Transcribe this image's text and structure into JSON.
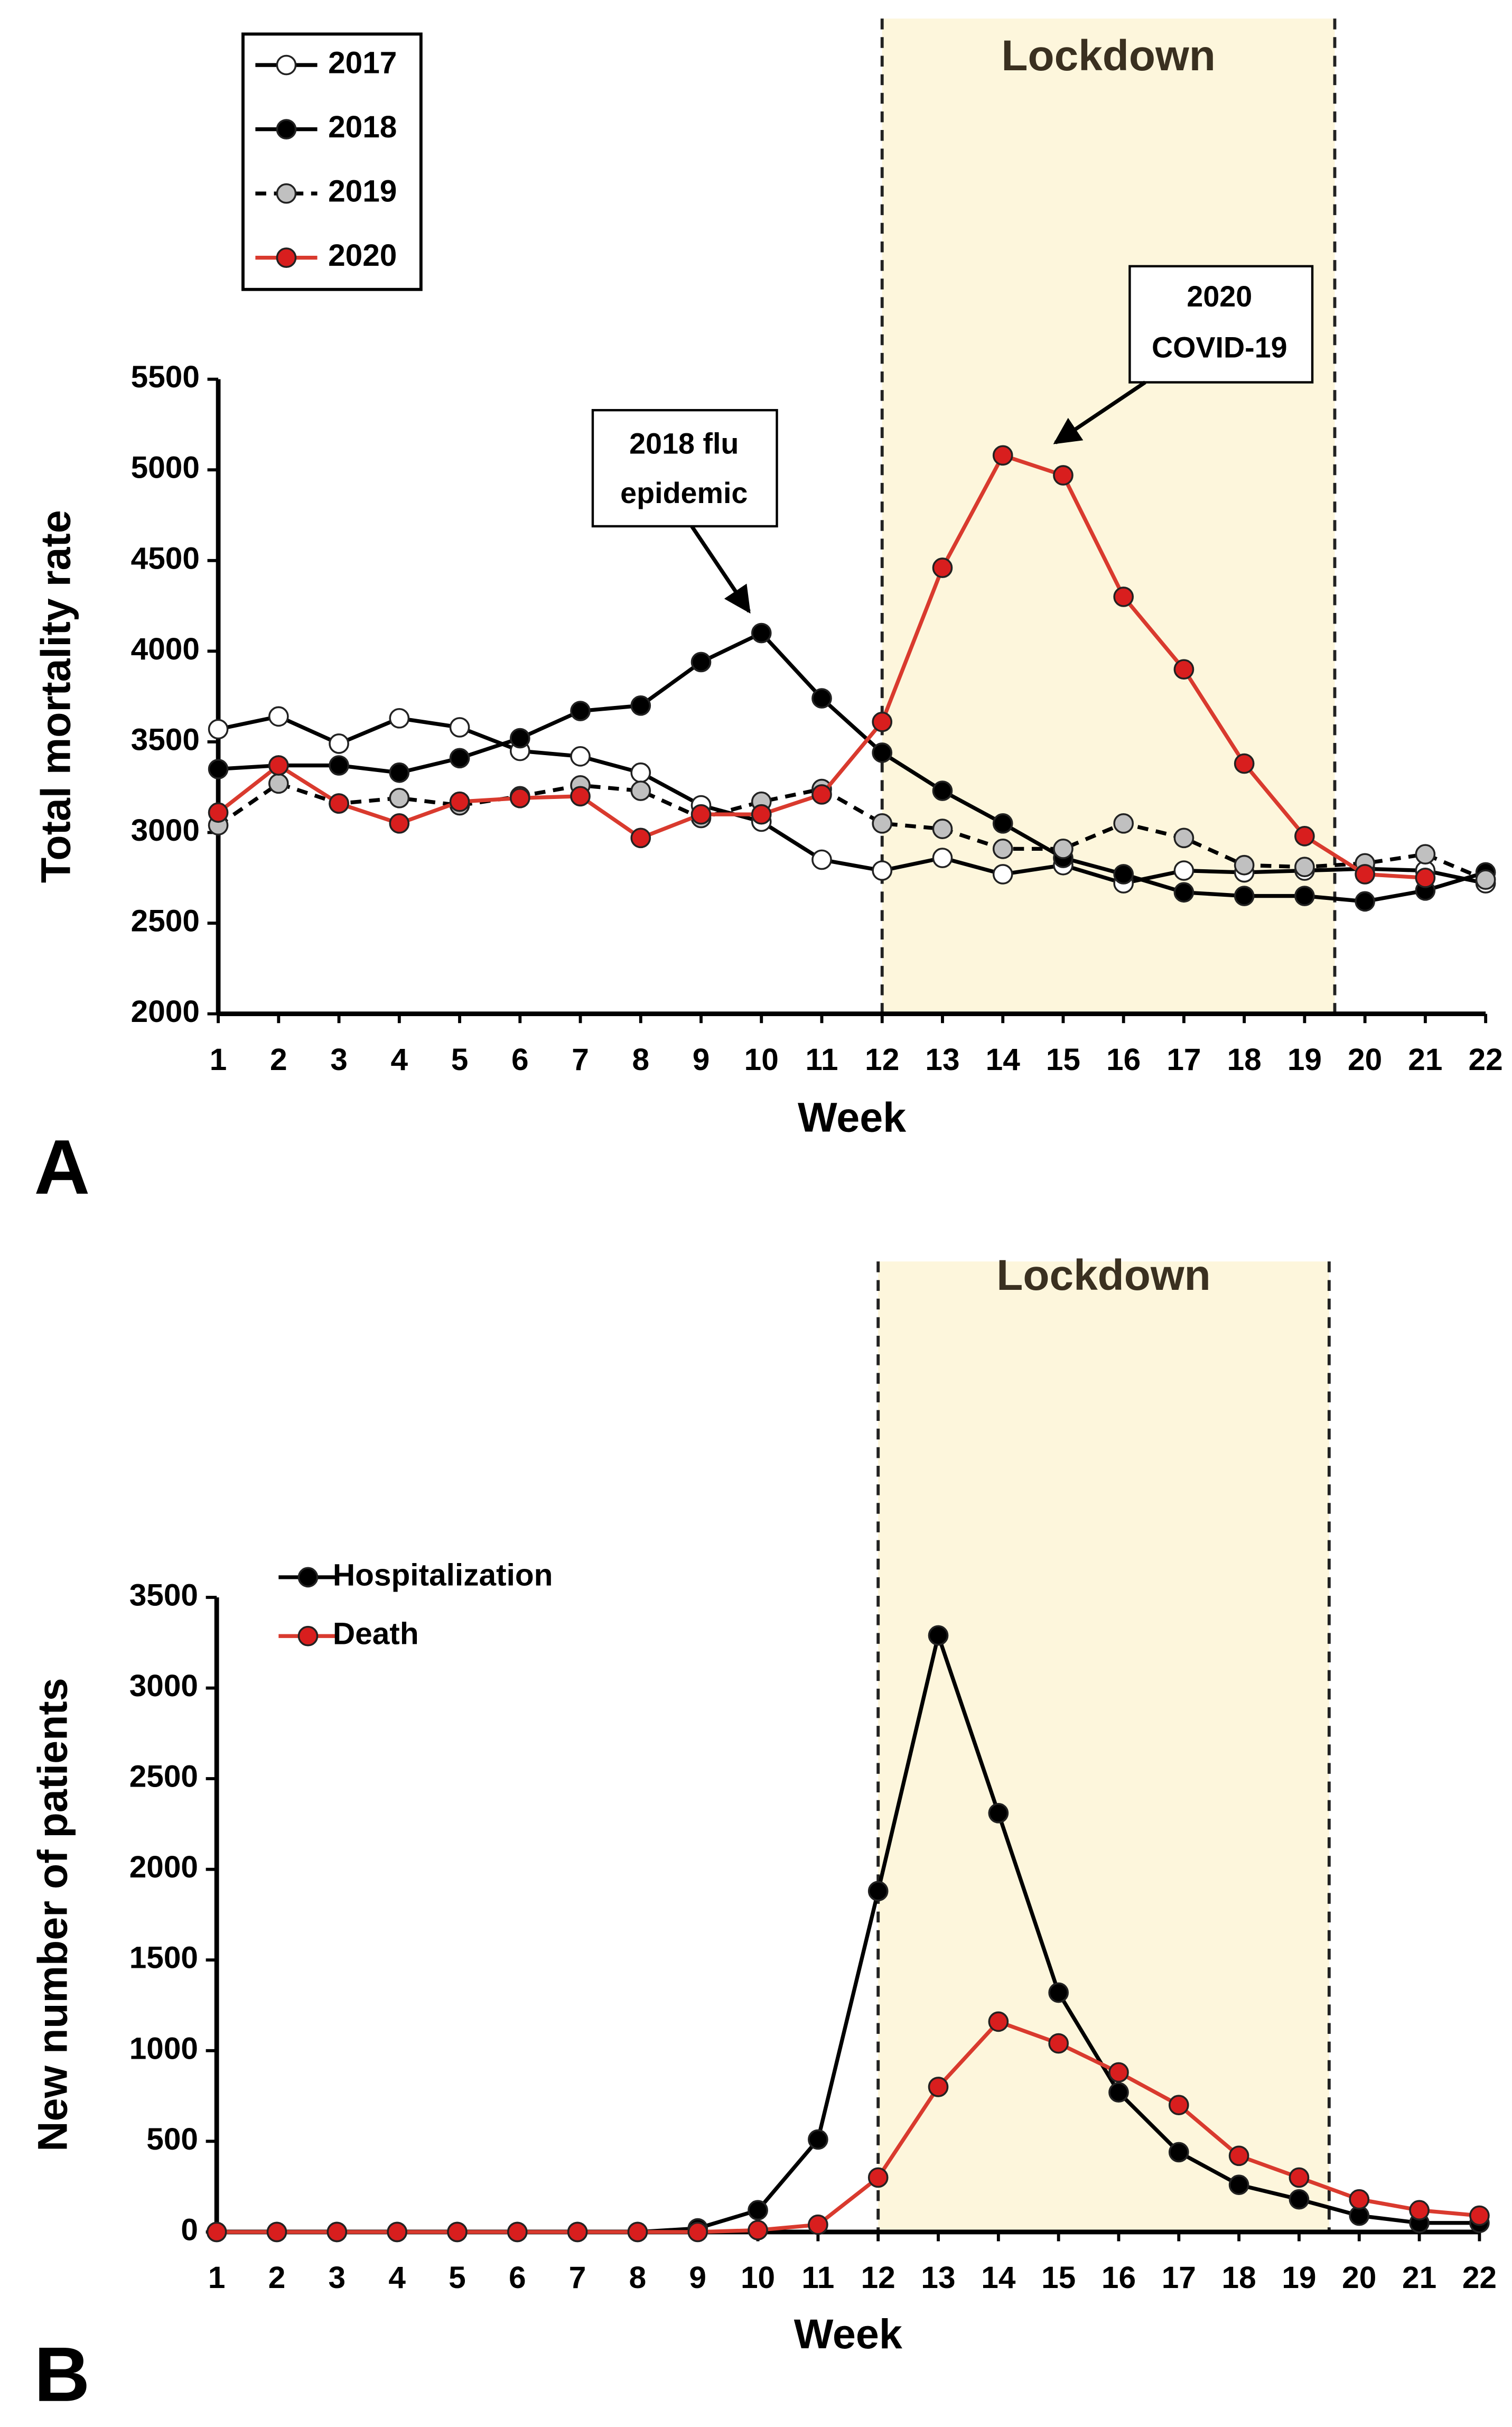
{
  "chart_data": [
    {
      "type": "line",
      "panel": "A",
      "xlabel": "Week",
      "ylabel": "Total mortality rate",
      "x": [
        1,
        2,
        3,
        4,
        5,
        6,
        7,
        8,
        9,
        10,
        11,
        12,
        13,
        14,
        15,
        16,
        17,
        18,
        19,
        20,
        21,
        22
      ],
      "xlim": [
        1,
        22
      ],
      "xticks": [
        1,
        2,
        3,
        4,
        5,
        6,
        7,
        8,
        9,
        10,
        11,
        12,
        13,
        14,
        15,
        16,
        17,
        18,
        19,
        20,
        21,
        22
      ],
      "ylim": [
        2000,
        5500
      ],
      "yticks": [
        2000,
        2500,
        3000,
        3500,
        4000,
        4500,
        5000,
        5500
      ],
      "grid": false,
      "legend": "upper left",
      "legend_box": true,
      "lockdown": {
        "label": "Lockdown",
        "start": 12,
        "end": 19.5,
        "color": "#fdf6dc"
      },
      "annotations": [
        {
          "text": [
            "2018 flu",
            "epidemic"
          ]
        },
        {
          "text": [
            "2020",
            "COVID-19"
          ]
        }
      ],
      "series": [
        {
          "name": "2017",
          "color": "#000000",
          "marker_color": "#ffffff",
          "line_style": "solid",
          "values": [
            3570,
            3640,
            3490,
            3630,
            3580,
            3450,
            3420,
            3330,
            3150,
            3060,
            2850,
            2790,
            2860,
            2770,
            2820,
            2720,
            2790,
            2780,
            2790,
            2800,
            2790,
            2720
          ]
        },
        {
          "name": "2018",
          "color": "#000000",
          "marker_color": "#000000",
          "line_style": "solid",
          "values": [
            3350,
            3370,
            3370,
            3330,
            3410,
            3520,
            3670,
            3700,
            3940,
            4100,
            3740,
            3440,
            3230,
            3050,
            2860,
            2770,
            2670,
            2650,
            2650,
            2620,
            2680,
            2780
          ]
        },
        {
          "name": "2019",
          "color": "#000000",
          "marker_color": "#c0c0c0",
          "line_style": "dashed",
          "values": [
            3040,
            3270,
            3160,
            3190,
            3150,
            3200,
            3260,
            3230,
            3080,
            3170,
            3240,
            3050,
            3020,
            2910,
            2910,
            3050,
            2970,
            2820,
            2810,
            2830,
            2880,
            2740
          ]
        },
        {
          "name": "2020",
          "color": "#d93a2e",
          "marker_color": "#d81e1e",
          "line_style": "solid",
          "values": [
            3110,
            3370,
            3160,
            3050,
            3170,
            3190,
            3200,
            2970,
            3100,
            3100,
            3210,
            3610,
            4460,
            5080,
            4970,
            4300,
            3900,
            3380,
            2980,
            2770,
            2750,
            null
          ]
        }
      ]
    },
    {
      "type": "line",
      "panel": "B",
      "xlabel": "Week",
      "ylabel": "New number of patients",
      "x": [
        1,
        2,
        3,
        4,
        5,
        6,
        7,
        8,
        9,
        10,
        11,
        12,
        13,
        14,
        15,
        16,
        17,
        18,
        19,
        20,
        21,
        22
      ],
      "xlim": [
        1,
        22
      ],
      "xticks": [
        1,
        2,
        3,
        4,
        5,
        6,
        7,
        8,
        9,
        10,
        11,
        12,
        13,
        14,
        15,
        16,
        17,
        18,
        19,
        20,
        21,
        22
      ],
      "ylim": [
        0,
        3500
      ],
      "yticks": [
        0,
        500,
        1000,
        1500,
        2000,
        2500,
        3000,
        3500
      ],
      "grid": false,
      "legend": "upper left",
      "legend_box": false,
      "lockdown": {
        "label": "Lockdown",
        "start": 12,
        "end": 19.5,
        "color": "#fdf6dc"
      },
      "series": [
        {
          "name": "Hospitalization",
          "color": "#000000",
          "marker_color": "#000000",
          "line_style": "solid",
          "values": [
            0,
            0,
            0,
            0,
            0,
            0,
            0,
            0,
            20,
            120,
            510,
            1880,
            3290,
            2310,
            1320,
            770,
            440,
            260,
            180,
            90,
            50,
            50
          ]
        },
        {
          "name": "Death",
          "color": "#d93a2e",
          "marker_color": "#d81e1e",
          "line_style": "solid",
          "values": [
            0,
            0,
            0,
            0,
            0,
            0,
            0,
            0,
            0,
            10,
            40,
            300,
            800,
            1160,
            1040,
            880,
            700,
            420,
            300,
            180,
            120,
            90
          ]
        }
      ]
    }
  ]
}
